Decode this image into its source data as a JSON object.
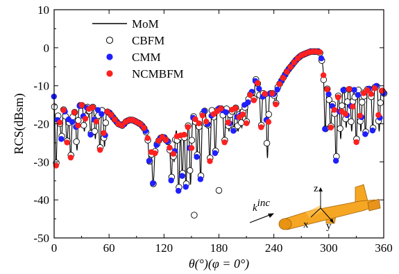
{
  "chart_data": {
    "type": "line",
    "xlabel": "θ(°)(φ = 0°)",
    "ylabel": "RCS(dBsm)",
    "xlim": [
      0,
      360
    ],
    "ylim": [
      -50,
      10
    ],
    "xticks": [
      0,
      60,
      120,
      180,
      240,
      300,
      360
    ],
    "yticks": [
      10,
      0,
      -10,
      -20,
      -30,
      -40,
      -50
    ],
    "xtick_labels": [
      "0",
      "60",
      "120",
      "180",
      "240",
      "300",
      "360"
    ],
    "ytick_labels": [
      "10",
      "0",
      "-10",
      "-20",
      "-30",
      "-40",
      "-50"
    ],
    "grid": false,
    "legend_position": "top-left",
    "colors": {
      "line": "#000000",
      "cmm": "#1f1fff",
      "ncmbfm": "#ff2020",
      "inset_body": "#f5a623"
    },
    "inset": {
      "z_label": "z",
      "x_label": "x",
      "y_label": "y",
      "k_label": "k",
      "k_superscript": "inc"
    },
    "series": [
      {
        "name": "MoM",
        "style": "line"
      },
      {
        "name": "CBFM",
        "style": "hollow-circle"
      },
      {
        "name": "CMM",
        "style": "blue-dot"
      },
      {
        "name": "NCMBFM",
        "style": "red-dot"
      }
    ],
    "envelope": [
      [
        0,
        -12
      ],
      [
        3,
        -16
      ],
      [
        6,
        -19
      ],
      [
        10,
        -16
      ],
      [
        15,
        -17
      ],
      [
        20,
        -18
      ],
      [
        25,
        -15.5
      ],
      [
        30,
        -15
      ],
      [
        35,
        -16
      ],
      [
        40,
        -14.5
      ],
      [
        45,
        -16
      ],
      [
        50,
        -15.5
      ],
      [
        55,
        -16.5
      ],
      [
        60,
        -17
      ],
      [
        65,
        -18.5
      ],
      [
        70,
        -20
      ],
      [
        75,
        -20.5
      ],
      [
        78,
        -19.5
      ],
      [
        82,
        -19
      ],
      [
        86,
        -19
      ],
      [
        90,
        -19.5
      ],
      [
        94,
        -20
      ],
      [
        98,
        -21
      ],
      [
        102,
        -23
      ],
      [
        106,
        -26
      ],
      [
        109,
        -29
      ],
      [
        111,
        -26
      ],
      [
        114,
        -24.5
      ],
      [
        117,
        -23.5
      ],
      [
        120,
        -23.5
      ],
      [
        123,
        -24.5
      ],
      [
        126,
        -25
      ],
      [
        130,
        -22
      ],
      [
        135,
        -21
      ],
      [
        140,
        -20
      ],
      [
        145,
        -20
      ],
      [
        150,
        -19
      ],
      [
        155,
        -17
      ],
      [
        160,
        -17
      ],
      [
        165,
        -16.5
      ],
      [
        170,
        -16
      ],
      [
        175,
        -16
      ],
      [
        180,
        -16
      ],
      [
        185,
        -16
      ],
      [
        190,
        -15.5
      ],
      [
        195,
        -15.5
      ],
      [
        200,
        -15.5
      ],
      [
        205,
        -15
      ],
      [
        210,
        -14.5
      ],
      [
        215,
        -12
      ],
      [
        220,
        -8
      ],
      [
        225,
        -11
      ],
      [
        230,
        -12
      ],
      [
        235,
        -12
      ],
      [
        240,
        -12
      ],
      [
        245,
        -10
      ],
      [
        250,
        -8
      ],
      [
        255,
        -6
      ],
      [
        260,
        -4.5
      ],
      [
        265,
        -3
      ],
      [
        270,
        -2
      ],
      [
        275,
        -1.5
      ],
      [
        280,
        -1
      ],
      [
        285,
        -1
      ],
      [
        290,
        -1
      ],
      [
        293,
        -4
      ],
      [
        296,
        -8
      ],
      [
        300,
        -12
      ],
      [
        305,
        -15
      ],
      [
        310,
        -12
      ],
      [
        315,
        -11
      ],
      [
        320,
        -11
      ],
      [
        325,
        -10.5
      ],
      [
        330,
        -10
      ],
      [
        335,
        -11
      ],
      [
        340,
        -10
      ],
      [
        345,
        -11
      ],
      [
        350,
        -10
      ],
      [
        355,
        -10
      ],
      [
        360,
        -12
      ]
    ],
    "dips": [
      [
        2,
        -31
      ],
      [
        8,
        -24
      ],
      [
        14,
        -25
      ],
      [
        18,
        -29
      ],
      [
        25,
        -27
      ],
      [
        33,
        -22
      ],
      [
        40,
        -23
      ],
      [
        45,
        -24
      ],
      [
        50,
        -27
      ],
      [
        55,
        -26
      ],
      [
        104,
        -30
      ],
      [
        108,
        -36
      ],
      [
        128,
        -35
      ],
      [
        131,
        -30
      ],
      [
        136,
        -38
      ],
      [
        140,
        -34
      ],
      [
        144,
        -37
      ],
      [
        149,
        -36
      ],
      [
        156,
        -29
      ],
      [
        160,
        -35
      ],
      [
        167,
        -21
      ],
      [
        170,
        -30
      ],
      [
        176,
        -28
      ],
      [
        186,
        -25
      ],
      [
        191,
        -22
      ],
      [
        196,
        -22
      ],
      [
        201,
        -22
      ],
      [
        205,
        -21
      ],
      [
        210,
        -20
      ],
      [
        218,
        -14
      ],
      [
        226,
        -21
      ],
      [
        233,
        -29
      ],
      [
        242,
        -15
      ],
      [
        296,
        -22
      ],
      [
        302,
        -21
      ],
      [
        308,
        -30
      ],
      [
        313,
        -24
      ],
      [
        319,
        -21
      ],
      [
        325,
        -22
      ],
      [
        330,
        -25
      ],
      [
        335,
        -22
      ],
      [
        340,
        -23
      ],
      [
        348,
        -22
      ],
      [
        355,
        -22
      ]
    ],
    "cbfm_outliers": [
      [
        153,
        -44
      ],
      [
        180,
        -37.5
      ]
    ]
  }
}
